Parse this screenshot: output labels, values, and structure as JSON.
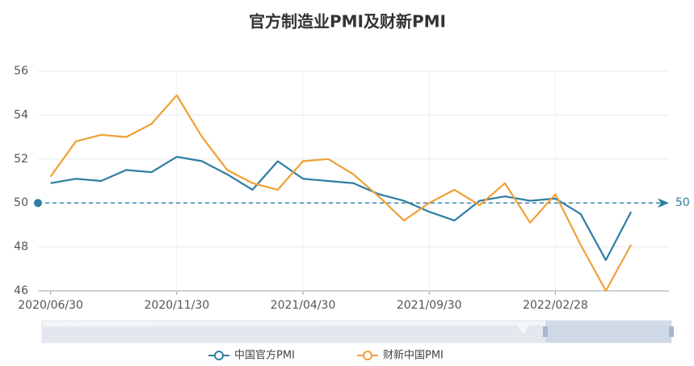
{
  "chart_data": {
    "type": "line",
    "title": "官方制造业PMI及财新PMI",
    "categories": [
      "2020/06/30",
      null,
      null,
      null,
      null,
      "2020/11/30",
      null,
      null,
      null,
      null,
      "2021/04/30",
      null,
      null,
      null,
      null,
      "2021/09/30",
      null,
      null,
      null,
      null,
      "2022/02/28",
      null,
      null,
      null
    ],
    "series": [
      {
        "name": "中国官方PMI",
        "color": "#2e7ea3",
        "values": [
          50.9,
          51.1,
          51.0,
          51.5,
          51.4,
          52.1,
          51.9,
          51.3,
          50.6,
          51.9,
          51.1,
          51.0,
          50.9,
          50.4,
          50.1,
          49.6,
          49.2,
          50.1,
          50.3,
          50.1,
          50.2,
          49.5,
          47.4,
          49.6
        ]
      },
      {
        "name": "财新中国PMI",
        "color": "#f0a035",
        "values": [
          51.2,
          52.8,
          53.1,
          53.0,
          53.6,
          54.9,
          53.0,
          51.5,
          50.9,
          50.6,
          51.9,
          52.0,
          51.3,
          50.3,
          49.2,
          50.0,
          50.6,
          49.9,
          50.9,
          49.1,
          50.4,
          48.1,
          46.0,
          48.1
        ]
      }
    ],
    "mark_line": {
      "value": 50,
      "color": "#2e7ea3"
    },
    "ylim": [
      46,
      56
    ],
    "yticks": [
      46,
      48,
      50,
      52,
      54,
      56
    ],
    "grid": true,
    "legend": "bottom"
  }
}
